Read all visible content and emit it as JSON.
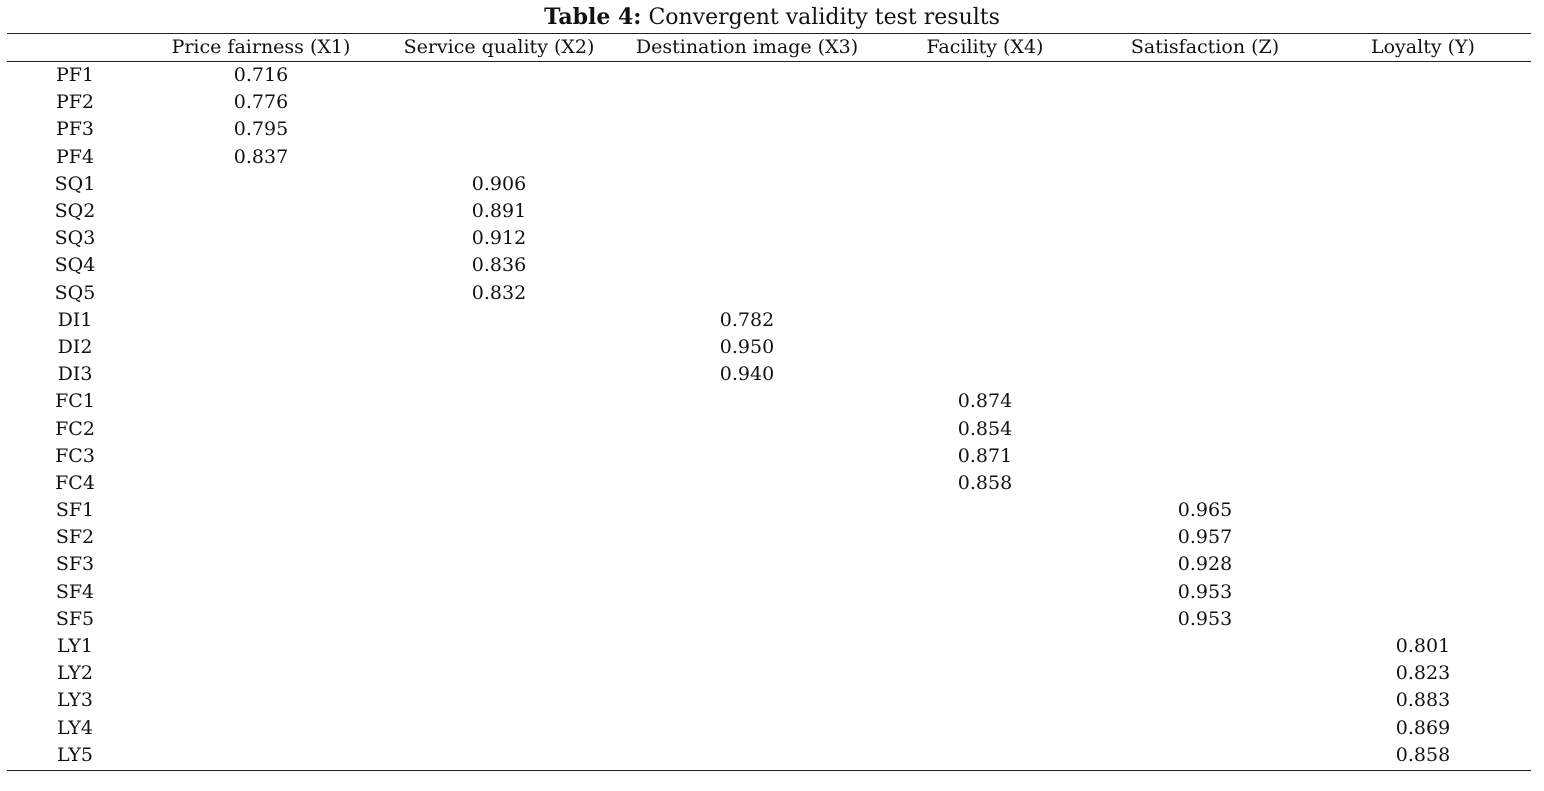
{
  "caption": {
    "label": "Table 4:",
    "text": "Convergent validity test results"
  },
  "table": {
    "columns": [
      "",
      "Price fairness (X1)",
      "Service quality (X2)",
      "Destination image (X3)",
      "Facility (X4)",
      "Satisfaction (Z)",
      "Loyalty (Y)"
    ],
    "rows": [
      [
        "PF1",
        "0.716",
        "",
        "",
        "",
        "",
        ""
      ],
      [
        "PF2",
        "0.776",
        "",
        "",
        "",
        "",
        ""
      ],
      [
        "PF3",
        "0.795",
        "",
        "",
        "",
        "",
        ""
      ],
      [
        "PF4",
        "0.837",
        "",
        "",
        "",
        "",
        ""
      ],
      [
        "SQ1",
        "",
        "0.906",
        "",
        "",
        "",
        ""
      ],
      [
        "SQ2",
        "",
        "0.891",
        "",
        "",
        "",
        ""
      ],
      [
        "SQ3",
        "",
        "0.912",
        "",
        "",
        "",
        ""
      ],
      [
        "SQ4",
        "",
        "0.836",
        "",
        "",
        "",
        ""
      ],
      [
        "SQ5",
        "",
        "0.832",
        "",
        "",
        "",
        ""
      ],
      [
        "DI1",
        "",
        "",
        "0.782",
        "",
        "",
        ""
      ],
      [
        "DI2",
        "",
        "",
        "0.950",
        "",
        "",
        ""
      ],
      [
        "DI3",
        "",
        "",
        "0.940",
        "",
        "",
        ""
      ],
      [
        "FC1",
        "",
        "",
        "",
        "0.874",
        "",
        ""
      ],
      [
        "FC2",
        "",
        "",
        "",
        "0.854",
        "",
        ""
      ],
      [
        "FC3",
        "",
        "",
        "",
        "0.871",
        "",
        ""
      ],
      [
        "FC4",
        "",
        "",
        "",
        "0.858",
        "",
        ""
      ],
      [
        "SF1",
        "",
        "",
        "",
        "",
        "0.965",
        ""
      ],
      [
        "SF2",
        "",
        "",
        "",
        "",
        "0.957",
        ""
      ],
      [
        "SF3",
        "",
        "",
        "",
        "",
        "0.928",
        ""
      ],
      [
        "SF4",
        "",
        "",
        "",
        "",
        "0.953",
        ""
      ],
      [
        "SF5",
        "",
        "",
        "",
        "",
        "0.953",
        ""
      ],
      [
        "LY1",
        "",
        "",
        "",
        "",
        "",
        "0.801"
      ],
      [
        "LY2",
        "",
        "",
        "",
        "",
        "",
        "0.823"
      ],
      [
        "LY3",
        "",
        "",
        "",
        "",
        "",
        "0.883"
      ],
      [
        "LY4",
        "",
        "",
        "",
        "",
        "",
        "0.869"
      ],
      [
        "LY5",
        "",
        "",
        "",
        "",
        "",
        "0.858"
      ]
    ]
  }
}
